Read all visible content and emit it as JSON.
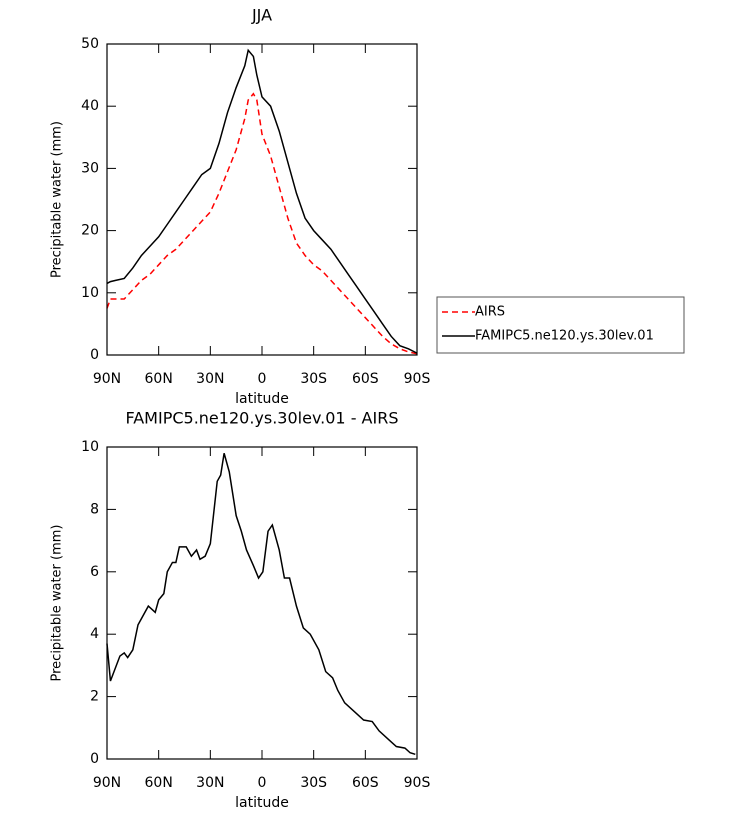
{
  "chart_data": [
    {
      "type": "line",
      "title": "JJA",
      "xlabel": "latitude",
      "ylabel": "Precipitable water (mm)",
      "x": [
        90,
        88,
        85,
        80,
        75,
        70,
        65,
        60,
        55,
        50,
        45,
        40,
        35,
        30,
        25,
        20,
        15,
        10,
        8,
        5,
        3,
        0,
        -5,
        -10,
        -15,
        -20,
        -25,
        -30,
        -35,
        -40,
        -45,
        -50,
        -55,
        -60,
        -65,
        -70,
        -75,
        -80,
        -85,
        -90
      ],
      "xlim": [
        90,
        -90
      ],
      "xticks": [
        {
          "value": 90,
          "label": "90N"
        },
        {
          "value": 60,
          "label": "60N"
        },
        {
          "value": 30,
          "label": "30N"
        },
        0,
        {
          "value": -30,
          "label": "30S"
        },
        {
          "value": -60,
          "label": "60S"
        },
        {
          "value": -90,
          "label": "90S"
        }
      ],
      "ylim": [
        0,
        50
      ],
      "yticks": [
        0,
        10,
        20,
        30,
        40,
        50
      ],
      "legend": "outside-right",
      "series": [
        {
          "name": "AIRS",
          "color": "#ff0000",
          "line_style": "dashed",
          "values": [
            7.5,
            9,
            9,
            9,
            10.5,
            12,
            13,
            14.5,
            16,
            17,
            18.5,
            20,
            21.5,
            23,
            26,
            29.5,
            33,
            38,
            41,
            42,
            41,
            35.5,
            32,
            27,
            22,
            18,
            16,
            14.5,
            13.5,
            12,
            10.5,
            9,
            7.5,
            6,
            4.5,
            3,
            1.8,
            1,
            0.5,
            0.2
          ]
        },
        {
          "name": "FAMIPC5.ne120.ys.30lev.01",
          "color": "#000000",
          "line_style": "solid",
          "values": [
            11.5,
            11.8,
            12,
            12.3,
            14,
            16,
            17.5,
            19,
            21,
            23,
            25,
            27,
            29,
            30,
            34,
            39,
            43,
            46.5,
            49,
            48,
            45,
            41.5,
            40,
            36,
            31,
            26,
            22,
            20,
            18.5,
            17,
            15,
            13,
            11,
            9,
            7,
            5,
            3,
            1.5,
            1,
            0.3
          ]
        }
      ]
    },
    {
      "type": "line",
      "title": "FAMIPC5.ne120.ys.30lev.01 - AIRS",
      "xlabel": "latitude",
      "ylabel": "Precipitable water (mm)",
      "x": [
        90,
        88,
        82.5,
        80,
        78,
        75,
        72,
        70,
        66,
        64,
        62,
        60,
        57,
        55,
        52,
        50,
        48,
        44,
        41,
        38,
        36,
        33,
        30,
        26,
        24,
        22,
        19,
        15,
        12,
        9,
        5,
        2,
        -0.5,
        -3.5,
        -6,
        -10,
        -13,
        -16,
        -20,
        -24,
        -28,
        -33,
        -37,
        -41,
        -44,
        -48,
        -54,
        -59,
        -64,
        -68,
        -74,
        -78,
        -83,
        -86,
        -89
      ],
      "xlim": [
        90,
        -90
      ],
      "xticks": [
        {
          "value": 90,
          "label": "90N"
        },
        {
          "value": 60,
          "label": "60N"
        },
        {
          "value": 30,
          "label": "30N"
        },
        0,
        {
          "value": -30,
          "label": "30S"
        },
        {
          "value": -60,
          "label": "60S"
        },
        {
          "value": -90,
          "label": "90S"
        }
      ],
      "ylim": [
        0,
        10
      ],
      "yticks": [
        0,
        2,
        4,
        6,
        8,
        10
      ],
      "series": [
        {
          "color": "#000000",
          "line_style": "solid",
          "values": [
            3.7,
            2.5,
            3.3,
            3.4,
            3.25,
            3.5,
            4.3,
            4.5,
            4.9,
            4.8,
            4.7,
            5.1,
            5.3,
            6,
            6.3,
            6.3,
            6.8,
            6.8,
            6.5,
            6.7,
            6.4,
            6.5,
            6.9,
            8.9,
            9.1,
            9.8,
            9.2,
            7.8,
            7.3,
            6.7,
            6.2,
            5.8,
            6,
            7.3,
            7.5,
            6.7,
            5.8,
            5.8,
            4.9,
            4.2,
            4,
            3.5,
            2.8,
            2.6,
            2.2,
            1.8,
            1.5,
            1.25,
            1.2,
            0.9,
            0.6,
            0.4,
            0.35,
            0.2,
            0.15
          ]
        }
      ]
    }
  ]
}
